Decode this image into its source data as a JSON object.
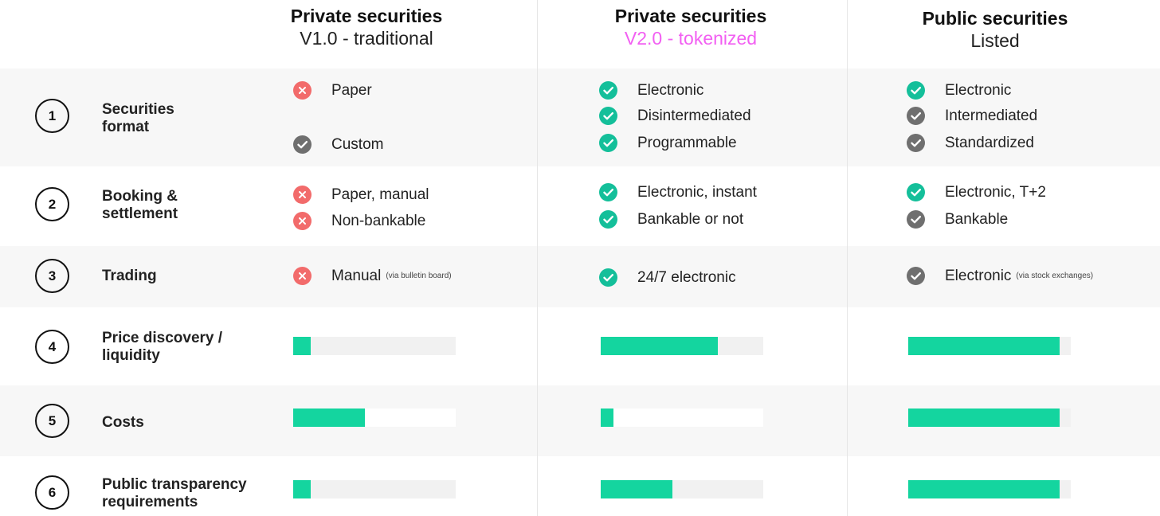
{
  "columns": [
    {
      "title": "Private securities",
      "subtitle": "V1.0 - traditional"
    },
    {
      "title": "Private securities",
      "subtitle": "V2.0 - tokenized"
    },
    {
      "title": "Public securities",
      "subtitle": "Listed"
    }
  ],
  "colors": {
    "check_green": "#14bf9a",
    "check_gray": "#6f6f6f",
    "cross_red": "#f26b6b",
    "bar_green": "#14d59f",
    "bar_track": "#f1f1f1",
    "accent_pink": "#f25ff2"
  },
  "rows": [
    {
      "number": "1",
      "label": [
        "Securities",
        "format"
      ],
      "cells": [
        [
          {
            "status": "cross",
            "text": "Paper"
          },
          {
            "status": "check-gray",
            "text": "Custom"
          }
        ],
        [
          {
            "status": "check-green",
            "text": "Electronic"
          },
          {
            "status": "check-green",
            "text": "Disintermediated"
          },
          {
            "status": "check-green",
            "text": "Programmable"
          }
        ],
        [
          {
            "status": "check-green",
            "text": "Electronic"
          },
          {
            "status": "check-gray",
            "text": "Intermediated"
          },
          {
            "status": "check-gray",
            "text": "Standardized"
          }
        ]
      ]
    },
    {
      "number": "2",
      "label": [
        "Booking &",
        "settlement"
      ],
      "cells": [
        [
          {
            "status": "cross",
            "text": "Paper, manual"
          },
          {
            "status": "cross",
            "text": "Non-bankable"
          }
        ],
        [
          {
            "status": "check-green",
            "text": "Electronic, instant"
          },
          {
            "status": "check-green",
            "text": "Bankable or not"
          }
        ],
        [
          {
            "status": "check-green",
            "text": "Electronic, T+2"
          },
          {
            "status": "check-gray",
            "text": "Bankable"
          }
        ]
      ]
    },
    {
      "number": "3",
      "label": [
        "Trading"
      ],
      "cells": [
        [
          {
            "status": "cross",
            "text": "Manual",
            "note": "(via bulletin board)"
          }
        ],
        [
          {
            "status": "check-green",
            "text": "24/7 electronic"
          }
        ],
        [
          {
            "status": "check-gray",
            "text": "Electronic",
            "note": "(via stock exchanges)"
          }
        ]
      ]
    },
    {
      "number": "4",
      "label": [
        "Price discovery /",
        "liquidity"
      ],
      "bars": [
        0.11,
        0.72,
        0.93
      ]
    },
    {
      "number": "5",
      "label": [
        "Costs"
      ],
      "bars": [
        0.44,
        0.08,
        0.93
      ]
    },
    {
      "number": "6",
      "label": [
        "Public transparency",
        "requirements"
      ],
      "bars": [
        0.11,
        0.44,
        0.93
      ]
    }
  ]
}
